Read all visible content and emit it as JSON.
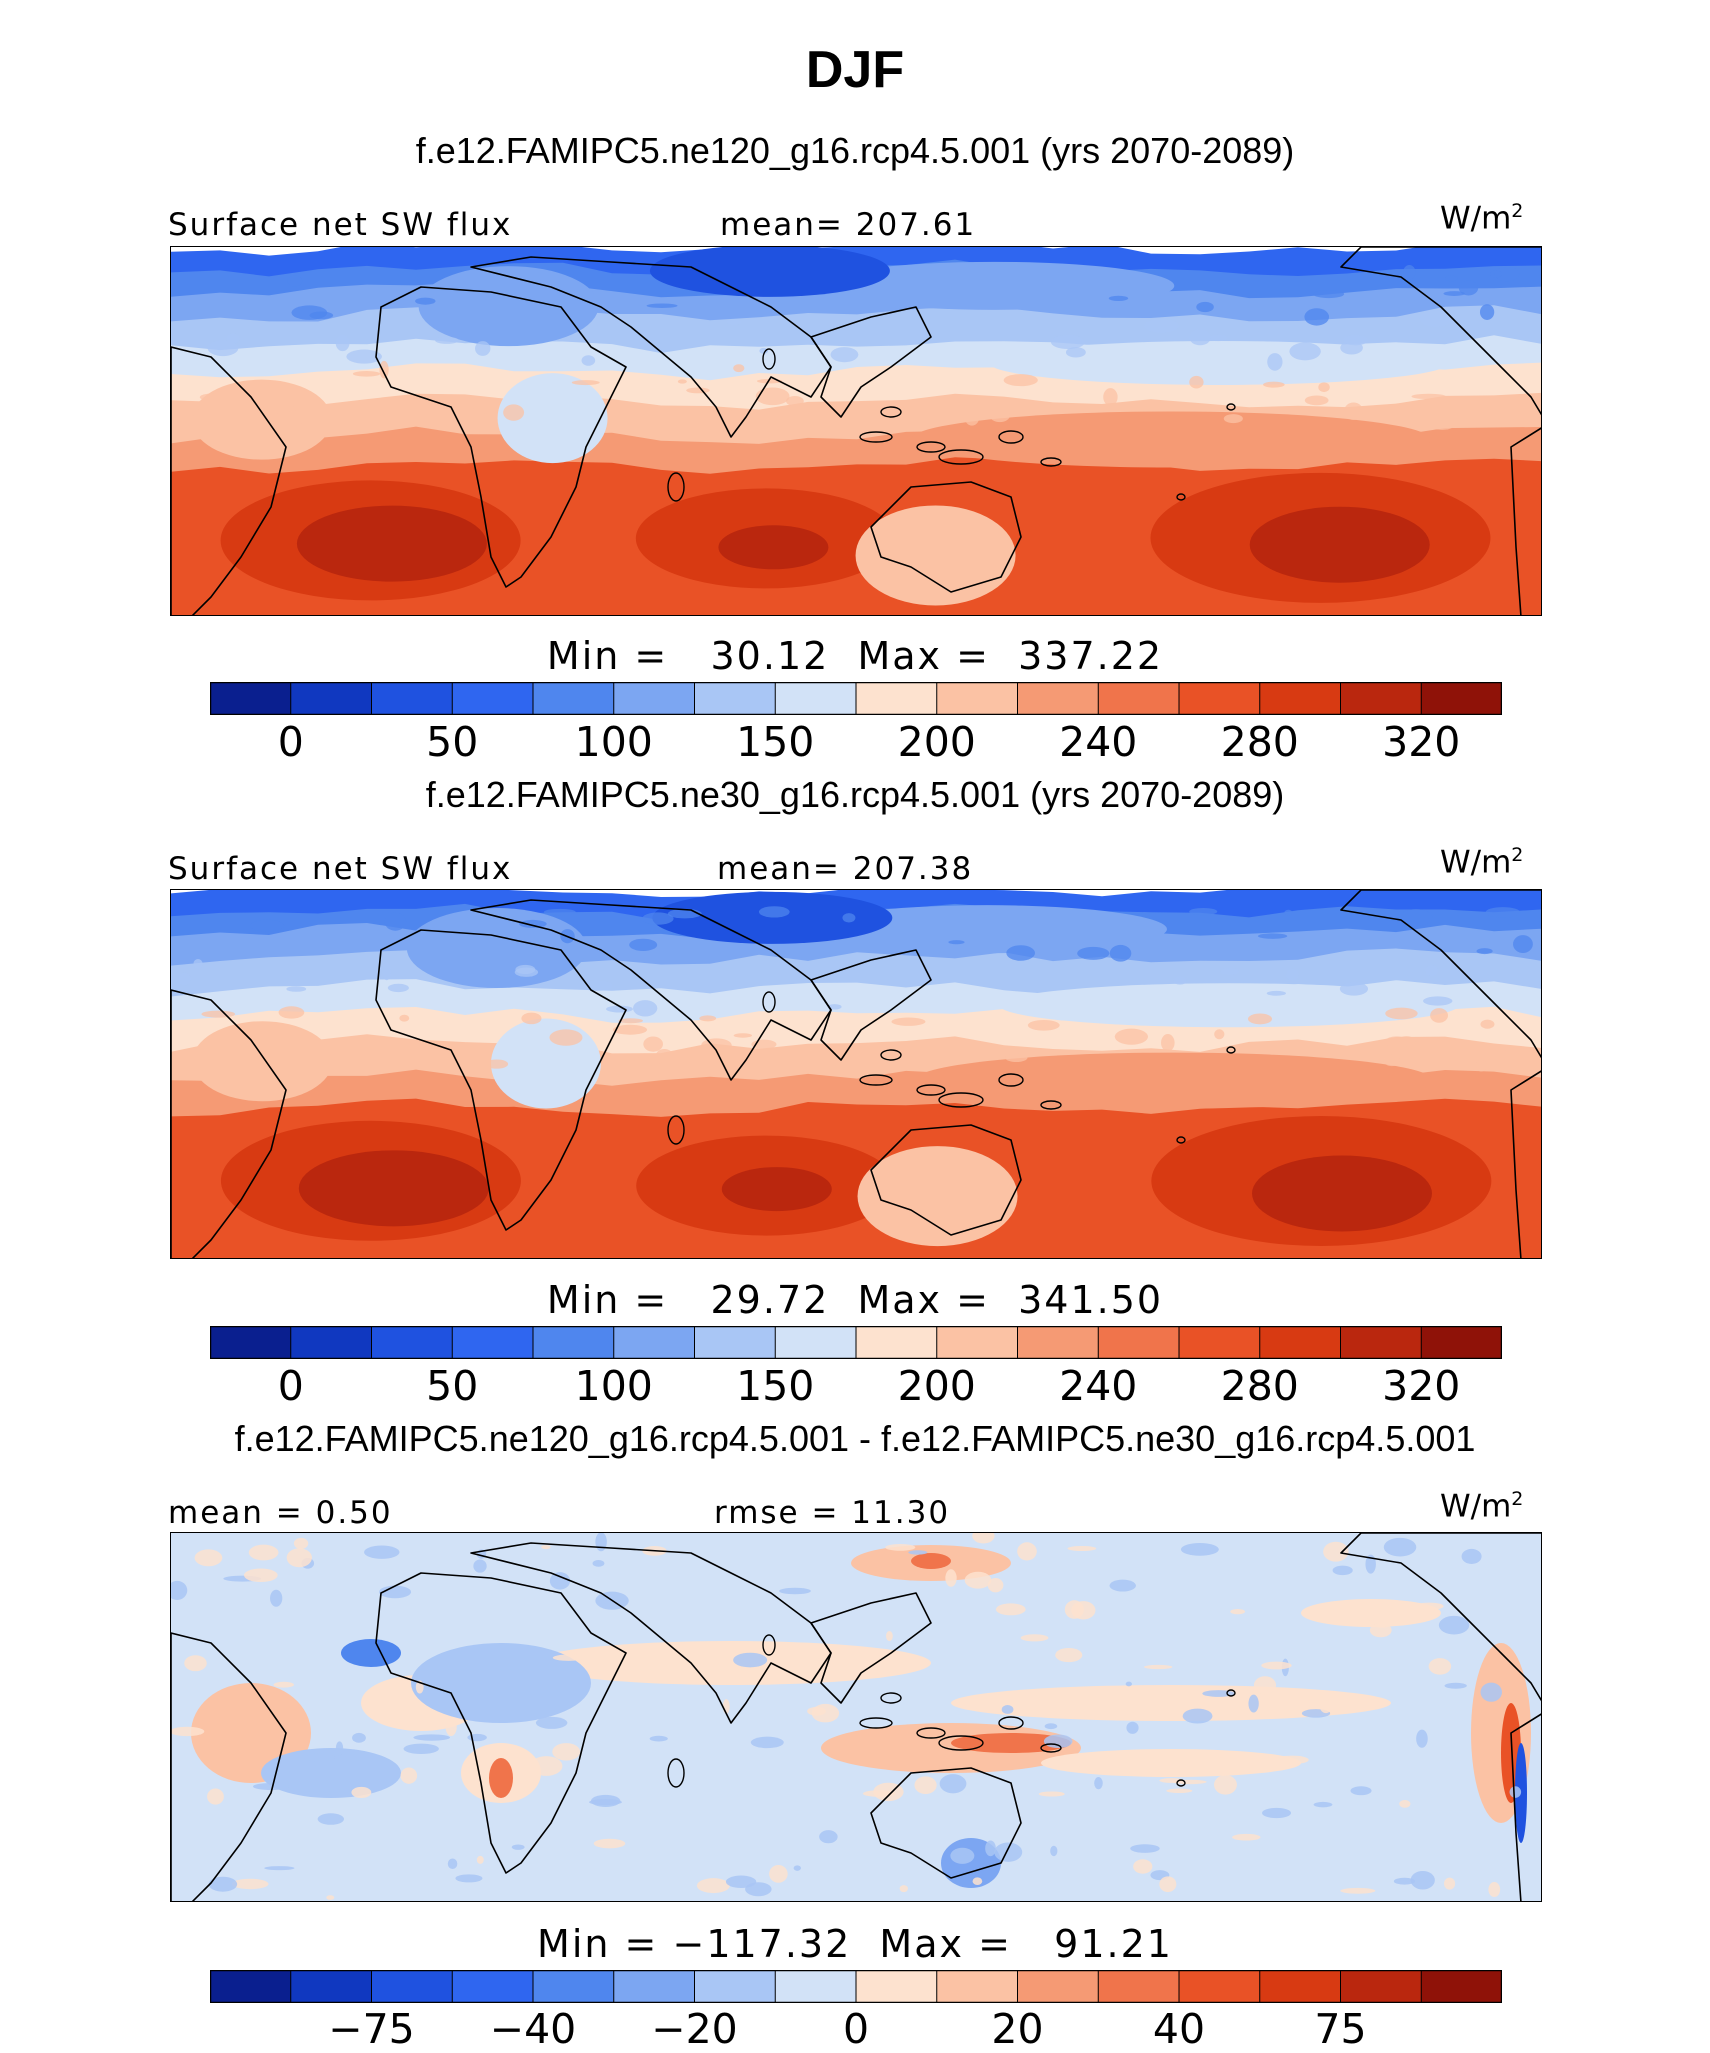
{
  "figure": {
    "title": "DJF",
    "units_text": "W/m",
    "units_sup": "2"
  },
  "colors": {
    "abs_palette": [
      "#0a1f8f",
      "#1038c0",
      "#1f52e0",
      "#2f66f0",
      "#4f86ee",
      "#7ca6f2",
      "#a9c6f5",
      "#d2e2f7",
      "#fde2cf",
      "#fbc2a4",
      "#f59a74",
      "#f0744b",
      "#e95226",
      "#d83a12",
      "#ba270e",
      "#8f1208"
    ],
    "diff_palette": [
      "#0a1f8f",
      "#1038c0",
      "#1f52e0",
      "#2f66f0",
      "#4f86ee",
      "#7ca6f2",
      "#a9c6f5",
      "#d2e2f7",
      "#fde2cf",
      "#fbc2a4",
      "#f59a74",
      "#f0744b",
      "#e95226",
      "#d83a12",
      "#ba270e",
      "#8f1208"
    ],
    "coastline": "#000000"
  },
  "panels": [
    {
      "case_title": "f.e12.FAMIPC5.ne120_g16.rcp4.5.001 (yrs 2070-2089)",
      "left_label": "Surface net SW flux",
      "center_label": "mean= 207.61",
      "min_max": "Min =   30.12  Max =  337.22"
    },
    {
      "case_title": "f.e12.FAMIPC5.ne30_g16.rcp4.5.001 (yrs 2070-2089)",
      "left_label": "Surface net SW flux",
      "center_label": "mean= 207.38",
      "min_max": "Min =   29.72  Max =  341.50"
    },
    {
      "case_title": "f.e12.FAMIPC5.ne120_g16.rcp4.5.001 - f.e12.FAMIPC5.ne30_g16.rcp4.5.001",
      "left_label": "mean =   0.50",
      "center_label": "rmse =   11.30",
      "min_max": "Min = −117.32  Max =   91.21"
    }
  ],
  "chart_data": [
    {
      "type": "heatmap",
      "title": "f.e12.FAMIPC5.ne120_g16.rcp4.5.001 (yrs 2070-2089)",
      "variable": "Surface net SW flux",
      "units": "W/m2",
      "mean": 207.61,
      "min": 30.12,
      "max": 337.22,
      "colorbar_levels": [
        0,
        25,
        50,
        75,
        100,
        125,
        150,
        175,
        200,
        220,
        240,
        260,
        280,
        300,
        320
      ],
      "colorbar_tick_labels": [
        "0",
        "50",
        "100",
        "150",
        "200",
        "240",
        "280",
        "320"
      ]
    },
    {
      "type": "heatmap",
      "title": "f.e12.FAMIPC5.ne30_g16.rcp4.5.001 (yrs 2070-2089)",
      "variable": "Surface net SW flux",
      "units": "W/m2",
      "mean": 207.38,
      "min": 29.72,
      "max": 341.5,
      "colorbar_levels": [
        0,
        25,
        50,
        75,
        100,
        125,
        150,
        175,
        200,
        220,
        240,
        260,
        280,
        300,
        320
      ],
      "colorbar_tick_labels": [
        "0",
        "50",
        "100",
        "150",
        "200",
        "240",
        "280",
        "320"
      ]
    },
    {
      "type": "heatmap",
      "title": "f.e12.FAMIPC5.ne120_g16.rcp4.5.001 - f.e12.FAMIPC5.ne30_g16.rcp4.5.001",
      "units": "W/m2",
      "mean": 0.5,
      "rmse": 11.3,
      "min": -117.32,
      "max": 91.21,
      "colorbar_levels": [
        -100,
        -75,
        -60,
        -40,
        -30,
        -20,
        -10,
        0,
        10,
        20,
        30,
        40,
        60,
        75,
        100
      ],
      "colorbar_tick_labels": [
        "−75",
        "−40",
        "−20",
        "0",
        "20",
        "40",
        "75"
      ]
    }
  ]
}
